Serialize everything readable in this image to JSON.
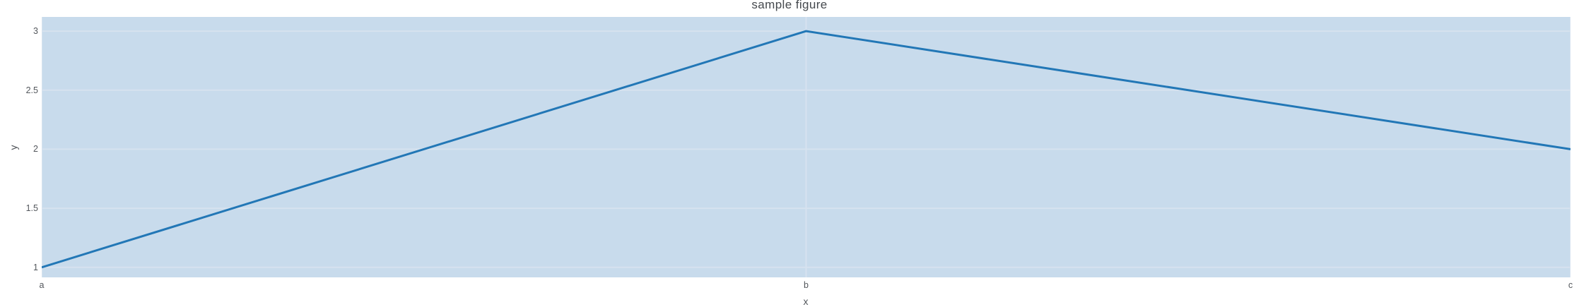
{
  "chart_data": {
    "type": "line",
    "title": "sample figure",
    "xlabel": "x",
    "ylabel": "y",
    "categories": [
      "a",
      "b",
      "c"
    ],
    "series": [
      {
        "name": "",
        "values": [
          1,
          3,
          2
        ]
      }
    ],
    "y_ticks": [
      1,
      1.5,
      2,
      2.5,
      3
    ],
    "x_tick_labels": [
      "a",
      "b",
      "c"
    ],
    "ylim": [
      0.915,
      3.12
    ],
    "grid": true,
    "legend_position": "none",
    "marker_mode": "lines-only",
    "colors": {
      "line": "#2277b6",
      "plot_background": "#c8dbec",
      "gridline": "#d6e2ef",
      "paper_background": "#ffffff",
      "tick_text": "#53575c",
      "title_text": "#45494e"
    }
  }
}
